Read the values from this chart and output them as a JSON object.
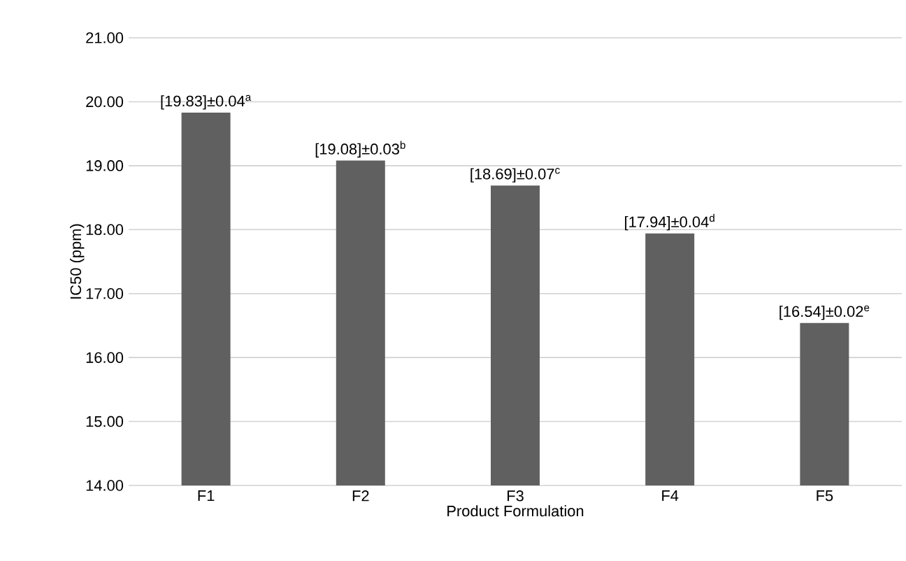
{
  "chart_data": {
    "type": "bar",
    "xlabel": "Product Formulation",
    "ylabel": "IC50 (ppm)",
    "categories": [
      "F1",
      "F2",
      "F3",
      "F4",
      "F5"
    ],
    "values": [
      19.83,
      19.08,
      18.69,
      17.94,
      16.54
    ],
    "value_labels": [
      "[19.83]±0.04$^{a}$",
      "[19.08]±0.03$^{b}$",
      "[18.69]±0.07$^{c}$",
      "[17.94]±0.04$^{d}$",
      "[16.54]±0.02$^{e}$"
    ],
    "color": "#5f605f",
    "ylim": [
      14,
      21
    ],
    "yticks": [
      {
        "value": 14,
        "label": "14.00"
      },
      {
        "value": 15,
        "label": "15.00"
      },
      {
        "value": 16,
        "label": "16.00"
      },
      {
        "value": 17,
        "label": "17.00"
      },
      {
        "value": 18,
        "label": "18.00"
      },
      {
        "value": 19,
        "label": "19.00"
      },
      {
        "value": 20,
        "label": "20.00"
      },
      {
        "value": 21,
        "label": "21.00"
      }
    ],
    "grid": "y"
  }
}
